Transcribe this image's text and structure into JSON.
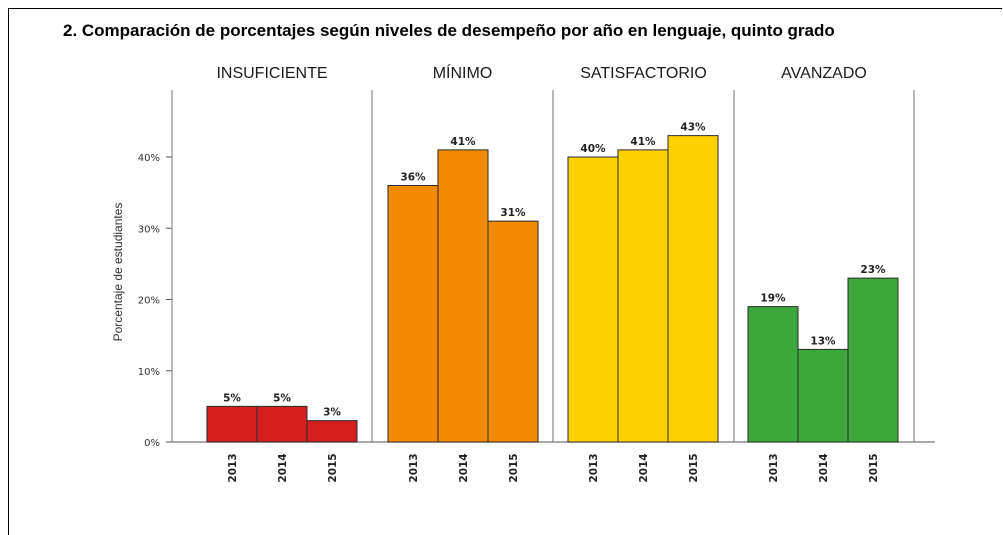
{
  "chart_data": {
    "type": "bar",
    "title": "2. Comparación de porcentajes según niveles de desempeño por año en lenguaje, quinto grado",
    "ylabel": "Porcentaje de estudiantes",
    "xlabel": "",
    "ylim": [
      0,
      50
    ],
    "yticks": [
      0,
      10,
      20,
      30,
      40
    ],
    "ytick_labels": [
      "0%",
      "10%",
      "20%",
      "30%",
      "40%"
    ],
    "categories": [
      "2013",
      "2014",
      "2015"
    ],
    "facets": [
      {
        "name": "INSUFICIENTE",
        "color": "#d41f1f",
        "values": [
          5,
          5,
          3
        ],
        "labels": [
          "5%",
          "5%",
          "3%"
        ]
      },
      {
        "name": "MÍNIMO",
        "color": "#f28a00",
        "values": [
          36,
          41,
          31
        ],
        "labels": [
          "36%",
          "41%",
          "31%"
        ]
      },
      {
        "name": "SATISFACTORIO",
        "color": "#ffd000",
        "values": [
          40,
          41,
          43
        ],
        "labels": [
          "40%",
          "41%",
          "43%"
        ]
      },
      {
        "name": "AVANZADO",
        "color": "#3ca83c",
        "values": [
          19,
          13,
          23
        ],
        "labels": [
          "19%",
          "13%",
          "23%"
        ]
      }
    ],
    "grid": false,
    "legend": "facet labels on top"
  }
}
